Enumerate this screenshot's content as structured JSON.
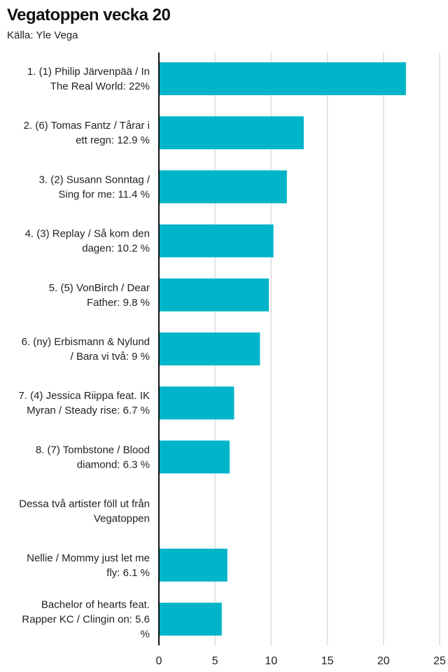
{
  "title": "Vegatoppen vecka 20",
  "subtitle": "Källa: Yle Vega",
  "chart_data": {
    "type": "bar",
    "orientation": "horizontal",
    "title": "Vegatoppen vecka 20",
    "subtitle": "Källa: Yle Vega",
    "xlabel": "",
    "ylabel": "",
    "xlim": [
      0,
      25
    ],
    "xticks": [
      0,
      5,
      10,
      15,
      20,
      25
    ],
    "grid": true,
    "legend": false,
    "bar_color": "#00b5c9",
    "categories": [
      [
        "1. (1) Philip Järvenpää / In",
        "The Real World: 22%"
      ],
      [
        "2. (6) Tomas Fantz / Tårar i",
        "ett regn: 12.9 %"
      ],
      [
        "3. (2) Susann Sonntag /",
        "Sing for me: 11.4 %"
      ],
      [
        "4. (3) Replay / Så kom den",
        "dagen: 10.2 %"
      ],
      [
        "5. (5) VonBirch / Dear",
        "Father: 9.8 %"
      ],
      [
        "6. (ny) Erbismann & Nylund",
        "/ Bara vi två: 9 %"
      ],
      [
        "7. (4) Jessica Riippa feat. IK",
        "Myran / Steady rise: 6.7 %"
      ],
      [
        "8. (7) Tombstone / Blood",
        "diamond: 6.3 %"
      ],
      [
        "Dessa två artister föll ut från",
        "Vegatoppen"
      ],
      [
        "Nellie / Mommy just let me",
        "fly: 6.1 %"
      ],
      [
        "Bachelor of hearts feat.",
        "Rapper KC / Clingin on: 5.6",
        "%"
      ]
    ],
    "values": [
      22,
      12.9,
      11.4,
      10.2,
      9.8,
      9,
      6.7,
      6.3,
      null,
      6.1,
      5.6
    ]
  }
}
